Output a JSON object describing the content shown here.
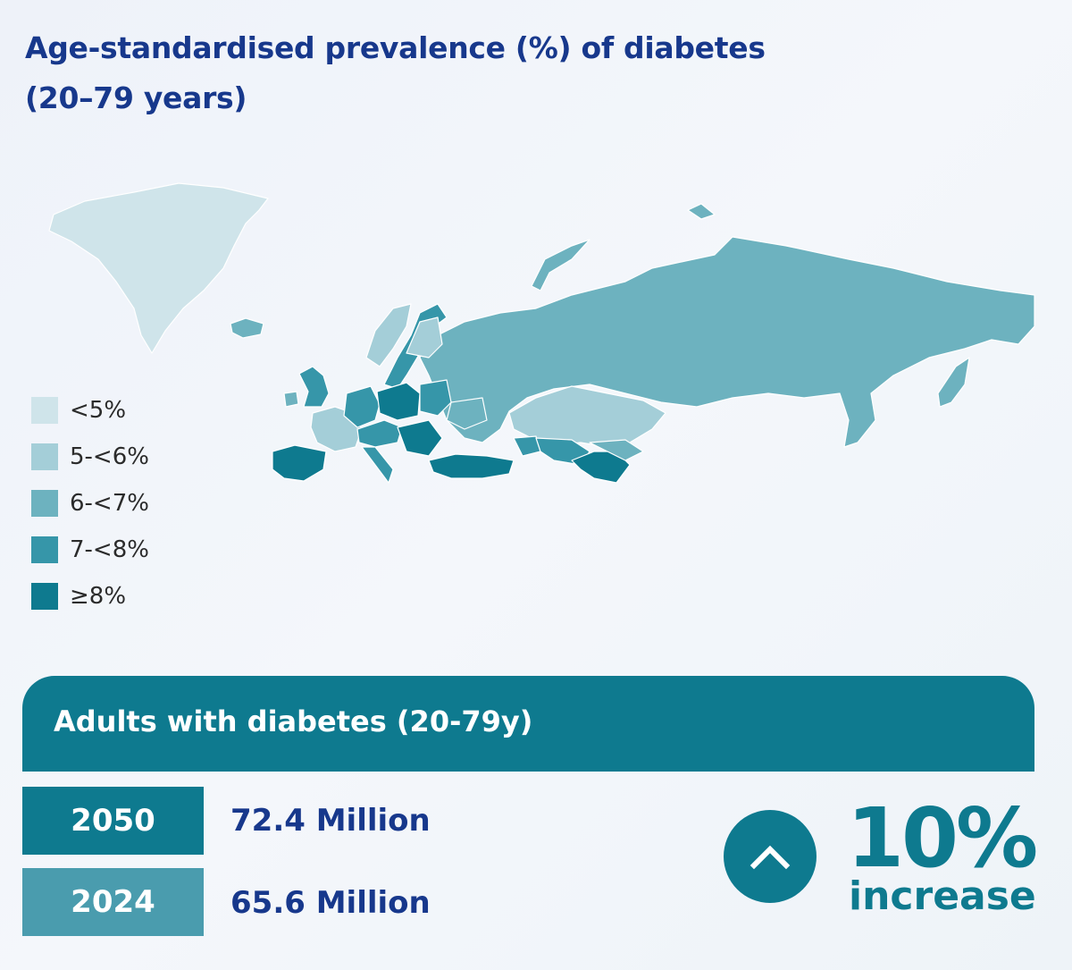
{
  "title": {
    "line1": "Age-standardised prevalence (%) of diabetes",
    "line2": "(20–79 years)"
  },
  "legend": [
    {
      "label": "<5%",
      "color": "#cfe4ea"
    },
    {
      "label": "5-<6%",
      "color": "#a4ced8"
    },
    {
      "label": "6-<7%",
      "color": "#6db2bf"
    },
    {
      "label": "7-<8%",
      "color": "#3696a9"
    },
    {
      "label": "≥8%",
      "color": "#0e7a8f"
    }
  ],
  "summary": {
    "header": "Adults with diabetes (20-79y)",
    "rows": [
      {
        "year": "2050",
        "value": "72.4 Million",
        "color": "#0e7a8f"
      },
      {
        "year": "2024",
        "value": "65.6 Million",
        "color": "#4a9cae"
      }
    ],
    "change": {
      "icon": "chevron-up-icon",
      "percent": "10%",
      "label": "increase"
    }
  }
}
